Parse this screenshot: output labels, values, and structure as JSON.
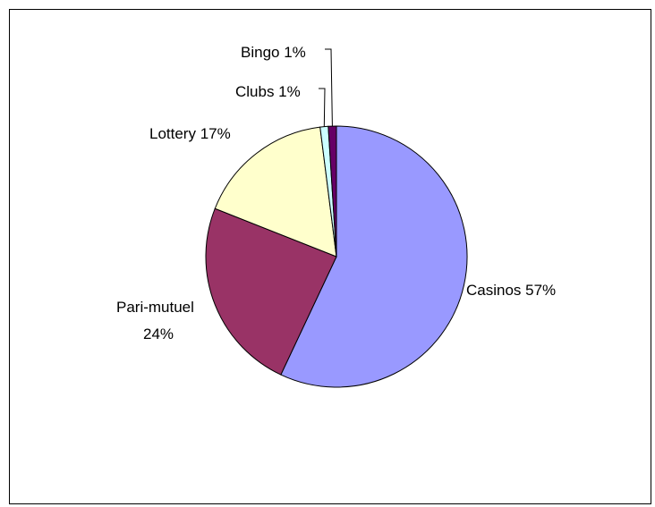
{
  "chart_data": {
    "type": "pie",
    "title": "",
    "slices": [
      {
        "name": "Casinos",
        "value": 57,
        "label": "Casinos 57%",
        "color": "#9999ff"
      },
      {
        "name": "Pari-mutuel",
        "value": 24,
        "label": "Pari-mutuel 24%",
        "label_lines": [
          "Pari-mutuel",
          "24%"
        ],
        "color": "#993366"
      },
      {
        "name": "Lottery",
        "value": 17,
        "label": "Lottery 17%",
        "color": "#ffffcc"
      },
      {
        "name": "Clubs",
        "value": 1,
        "label": "Clubs 1%",
        "color": "#ccffff"
      },
      {
        "name": "Bingo",
        "value": 1,
        "label": "Bingo 1%",
        "color": "#660066"
      }
    ],
    "legend": "none"
  }
}
